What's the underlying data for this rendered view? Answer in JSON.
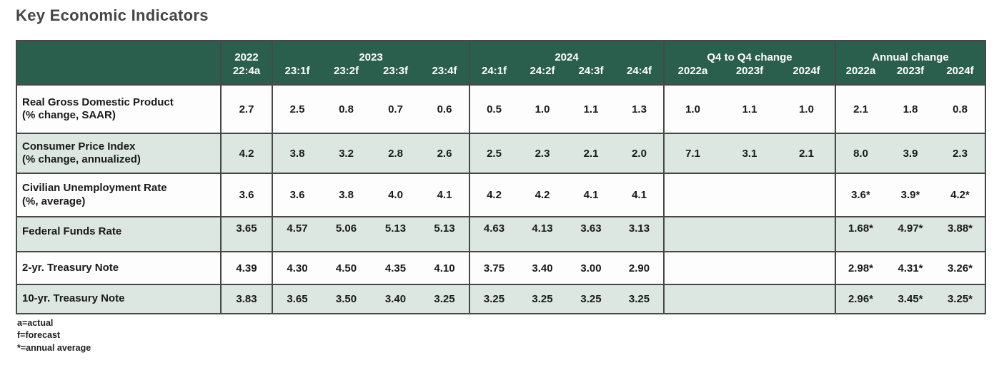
{
  "title": "Key Economic Indicators",
  "chart_data": {
    "type": "table",
    "header_groups": [
      {
        "label": "2022",
        "colspan": 1
      },
      {
        "label": "2023",
        "colspan": 4
      },
      {
        "label": "2024",
        "colspan": 4
      },
      {
        "label": "Q4 to Q4 change",
        "colspan": 3
      },
      {
        "label": "Annual change",
        "colspan": 3
      }
    ],
    "columns": [
      "22:4a",
      "23:1f",
      "23:2f",
      "23:3f",
      "23:4f",
      "24:1f",
      "24:2f",
      "24:3f",
      "24:4f",
      "2022a",
      "2023f",
      "2024f",
      "2022a",
      "2023f",
      "2024f"
    ],
    "rows": [
      {
        "label": "Real Gross Domestic Product",
        "sublabel": "(% change, SAAR)",
        "values": [
          "2.7",
          "2.5",
          "0.8",
          "0.7",
          "0.6",
          "0.5",
          "1.0",
          "1.1",
          "1.3",
          "1.0",
          "1.1",
          "1.0",
          "2.1",
          "1.8",
          "0.8"
        ]
      },
      {
        "label": "Consumer Price Index",
        "sublabel": "(% change, annualized)",
        "values": [
          "4.2",
          "3.8",
          "3.2",
          "2.8",
          "2.6",
          "2.5",
          "2.3",
          "2.1",
          "2.0",
          "7.1",
          "3.1",
          "2.1",
          "8.0",
          "3.9",
          "2.3"
        ]
      },
      {
        "label": "Civilian Unemployment Rate",
        "sublabel": "(%, average)",
        "values": [
          "3.6",
          "3.6",
          "3.8",
          "4.0",
          "4.1",
          "4.2",
          "4.2",
          "4.1",
          "4.1",
          "",
          "",
          "",
          "3.6*",
          "3.9*",
          "4.2*"
        ]
      },
      {
        "label": "Federal Funds Rate",
        "sublabel": "",
        "values": [
          "3.65",
          "4.57",
          "5.06",
          "5.13",
          "5.13",
          "4.63",
          "4.13",
          "3.63",
          "3.13",
          "",
          "",
          "",
          "1.68*",
          "4.97*",
          "3.88*"
        ]
      },
      {
        "label": "2-yr. Treasury Note",
        "sublabel": "",
        "values": [
          "4.39",
          "4.30",
          "4.50",
          "4.35",
          "4.10",
          "3.75",
          "3.40",
          "3.00",
          "2.90",
          "",
          "",
          "",
          "2.98*",
          "4.31*",
          "3.26*"
        ]
      },
      {
        "label": "10-yr. Treasury Note",
        "sublabel": "",
        "values": [
          "3.83",
          "3.65",
          "3.50",
          "3.40",
          "3.25",
          "3.25",
          "3.25",
          "3.25",
          "3.25",
          "",
          "",
          "",
          "2.96*",
          "3.45*",
          "3.25*"
        ]
      }
    ]
  },
  "footnotes": [
    "a=actual",
    "f=forecast",
    "*=annual average"
  ],
  "colors": {
    "header_bg": "#2b5f4d",
    "header_text": "#ffffff",
    "row_alt_bg": "#dbe7e0",
    "row_bg": "#fdfdfd",
    "border": "#474747",
    "title_text": "#454545",
    "body_text": "#1a1a1a"
  }
}
